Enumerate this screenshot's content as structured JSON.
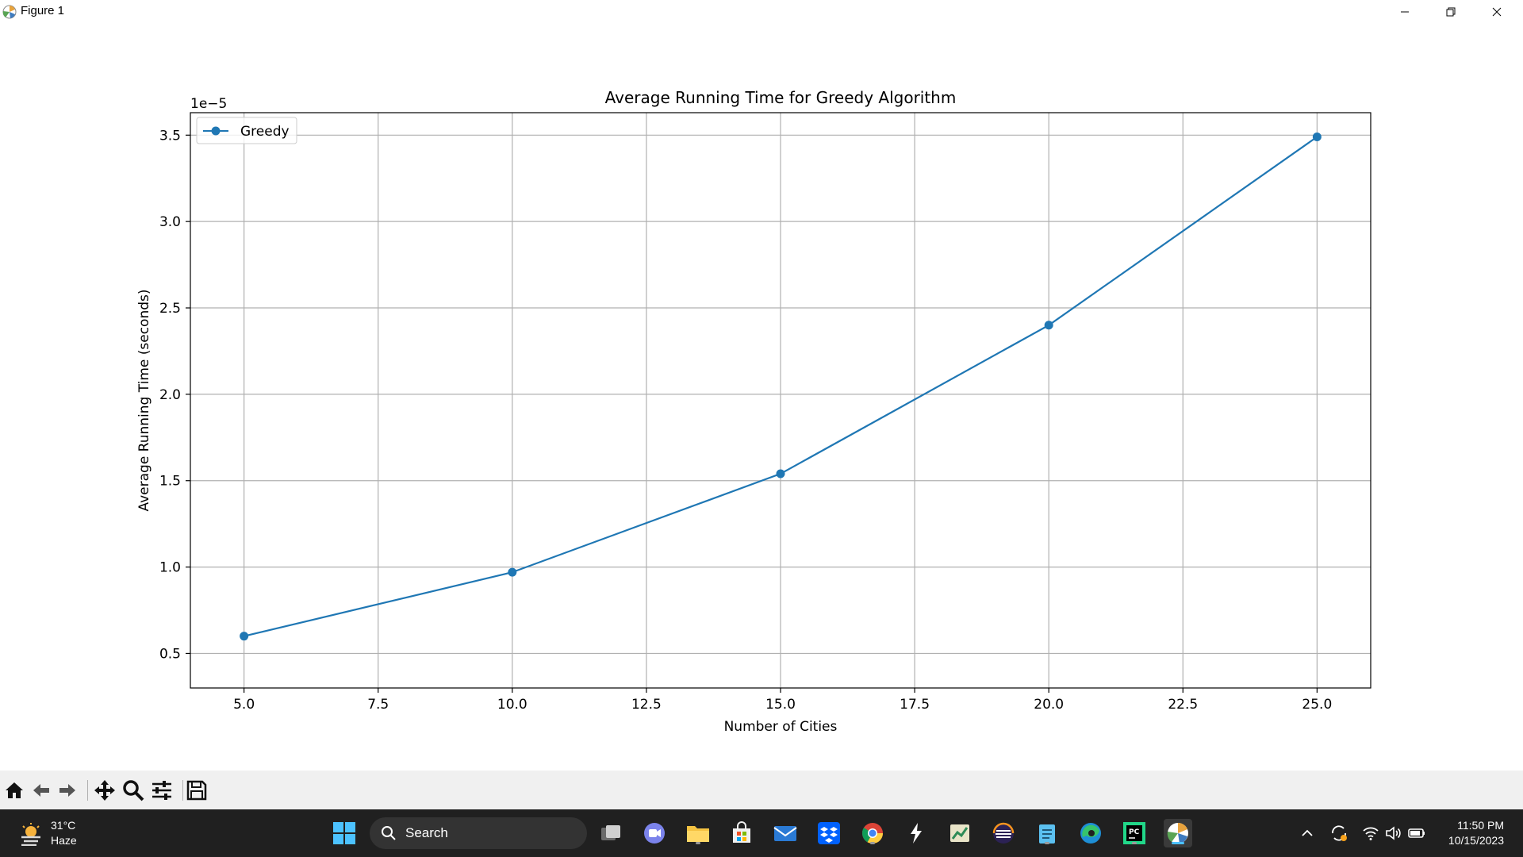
{
  "window": {
    "title": "Figure 1"
  },
  "colors": {
    "series": "#1f77b4",
    "grid": "#b0b0b0",
    "taskbar": "#202020",
    "toolbar": "#f0f0f0",
    "accent": "#4cc2ff"
  },
  "chart_data": {
    "type": "line",
    "title": "Average Running Time for Greedy Algorithm",
    "xlabel": "Number of Cities",
    "ylabel": "Average Running Time (seconds)",
    "offset_label": "1e−5",
    "xlim": [
      4.0,
      26.0
    ],
    "ylim": [
      0.3,
      3.63
    ],
    "y_scale_note": "values scaled by 1e-5",
    "grid": true,
    "legend_position": "upper left",
    "x_ticks": [
      5.0,
      7.5,
      10.0,
      12.5,
      15.0,
      17.5,
      20.0,
      22.5,
      25.0
    ],
    "x_tick_labels": [
      "5.0",
      "7.5",
      "10.0",
      "12.5",
      "15.0",
      "17.5",
      "20.0",
      "22.5",
      "25.0"
    ],
    "y_ticks": [
      0.5,
      1.0,
      1.5,
      2.0,
      2.5,
      3.0,
      3.5
    ],
    "y_tick_labels": [
      "0.5",
      "1.0",
      "1.5",
      "2.0",
      "2.5",
      "3.0",
      "3.5"
    ],
    "series": [
      {
        "name": "Greedy",
        "marker": "circle",
        "x": [
          5,
          10,
          15,
          20,
          25
        ],
        "y": [
          0.6,
          0.97,
          1.54,
          2.4,
          3.49
        ]
      }
    ]
  },
  "toolbar": {
    "buttons": [
      {
        "name": "home-button",
        "icon": "home-icon"
      },
      {
        "name": "back-button",
        "icon": "arrow-left-icon"
      },
      {
        "name": "forward-button",
        "icon": "arrow-right-icon"
      },
      {
        "name": "pan-button",
        "icon": "move-icon"
      },
      {
        "name": "zoom-button",
        "icon": "magnifier-icon"
      },
      {
        "name": "configure-subplots-button",
        "icon": "sliders-icon"
      },
      {
        "name": "save-button",
        "icon": "floppy-disk-icon"
      }
    ]
  },
  "taskbar": {
    "weather": {
      "temp": "31°C",
      "condition": "Haze"
    },
    "search_label": "Search",
    "clock": {
      "time": "11:50 PM",
      "date": "10/15/2023"
    }
  }
}
